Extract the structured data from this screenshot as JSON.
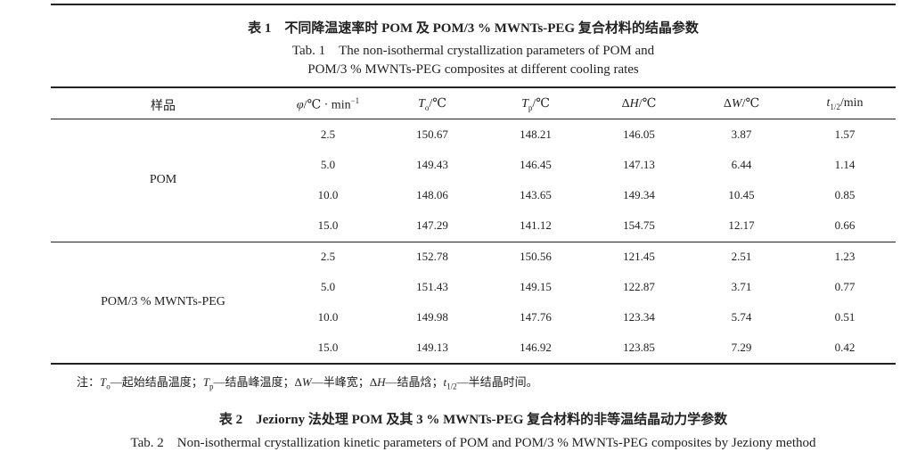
{
  "table1": {
    "title": "表 1　不同降温速率时 POM 及 POM/3 % MWNTs-PEG 复合材料的结晶参数",
    "title_en": [
      "Tab. 1　The non-isothermal crystallization parameters of POM and",
      "POM/3 % MWNTs-PEG composites at different cooling rates"
    ],
    "columns": [
      [
        {
          "text": "样品"
        }
      ],
      [
        {
          "text": "φ",
          "style": "italic"
        },
        {
          "text": "/℃ · min"
        },
        {
          "text": "−1",
          "style": "sup"
        }
      ],
      [
        {
          "text": "T",
          "style": "italic"
        },
        {
          "text": "o",
          "style": "sub"
        },
        {
          "text": "/℃"
        }
      ],
      [
        {
          "text": "T",
          "style": "italic"
        },
        {
          "text": "p",
          "style": "sub"
        },
        {
          "text": "/℃"
        }
      ],
      [
        {
          "text": "Δ"
        },
        {
          "text": "H",
          "style": "italic"
        },
        {
          "text": "/℃"
        }
      ],
      [
        {
          "text": "Δ"
        },
        {
          "text": "W",
          "style": "italic"
        },
        {
          "text": "/℃"
        }
      ],
      [
        {
          "text": "t",
          "style": "italic"
        },
        {
          "text": "1/2",
          "style": "sub"
        },
        {
          "text": "/min"
        }
      ]
    ],
    "groups": [
      {
        "sample": "POM",
        "rows": [
          [
            "2.5",
            "150.67",
            "148.21",
            "146.05",
            "3.87",
            "1.57"
          ],
          [
            "5.0",
            "149.43",
            "146.45",
            "147.13",
            "6.44",
            "1.14"
          ],
          [
            "10.0",
            "148.06",
            "143.65",
            "149.34",
            "10.45",
            "0.85"
          ],
          [
            "15.0",
            "147.29",
            "141.12",
            "154.75",
            "12.17",
            "0.66"
          ]
        ]
      },
      {
        "sample": "POM/3 % MWNTs-PEG",
        "rows": [
          [
            "2.5",
            "152.78",
            "150.56",
            "121.45",
            "2.51",
            "1.23"
          ],
          [
            "5.0",
            "151.43",
            "149.15",
            "122.87",
            "3.71",
            "0.77"
          ],
          [
            "10.0",
            "149.98",
            "147.76",
            "123.34",
            "5.74",
            "0.51"
          ],
          [
            "15.0",
            "149.13",
            "146.92",
            "123.85",
            "7.29",
            "0.42"
          ]
        ]
      }
    ],
    "note": [
      {
        "text": "注："
      },
      {
        "text": "T",
        "style": "italic"
      },
      {
        "text": "o",
        "style": "sub"
      },
      {
        "text": "—起始结晶温度；"
      },
      {
        "text": "T",
        "style": "italic"
      },
      {
        "text": "p",
        "style": "sub"
      },
      {
        "text": "—结晶峰温度；Δ"
      },
      {
        "text": "W",
        "style": "italic"
      },
      {
        "text": "—半峰宽；Δ"
      },
      {
        "text": "H",
        "style": "italic"
      },
      {
        "text": "—结晶焓；"
      },
      {
        "text": "t",
        "style": "italic"
      },
      {
        "text": "1/2",
        "style": "sub"
      },
      {
        "text": "—半结晶时间。"
      }
    ]
  },
  "table2": {
    "title": "表 2　Jeziorny 法处理 POM 及其 3 % MWNTs-PEG 复合材料的非等温结晶动力学参数",
    "title_en": "Tab. 2　Non-isothermal crystallization kinetic parameters of POM and POM/3 % MWNTs-PEG composites by Jeziony method"
  }
}
